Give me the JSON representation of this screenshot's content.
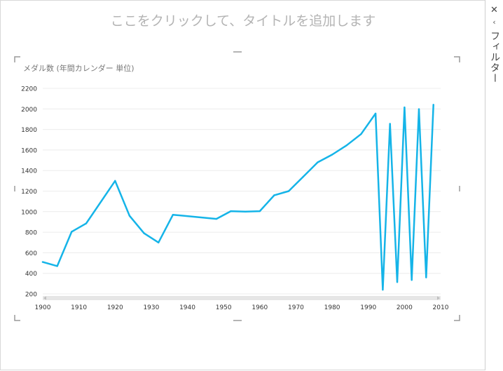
{
  "report": {
    "title_placeholder": "ここをクリックして、タイトルを追加します"
  },
  "filter_pane": {
    "close_glyph": "✕",
    "chevron_glyph": "‹",
    "label": "フィルター"
  },
  "colors": {
    "line": "#15b4e8",
    "grid": "#ececec",
    "axis_text": "#333333",
    "scrollbar": "#e6e6e6"
  },
  "chart_data": {
    "type": "line",
    "title": "メダル数 (年間カレンダー 単位)",
    "xlim": [
      1900,
      2010
    ],
    "ylim": [
      200,
      2200
    ],
    "xticks": [
      1900,
      1910,
      1920,
      1930,
      1940,
      1950,
      1960,
      1970,
      1980,
      1990,
      2000,
      2010
    ],
    "yticks": [
      200,
      400,
      600,
      800,
      1000,
      1200,
      1400,
      1600,
      1800,
      2000,
      2200
    ],
    "grid": true,
    "legend": "none",
    "series": [
      {
        "x": [
          1900,
          1904,
          1908,
          1912,
          1920,
          1924,
          1928,
          1932,
          1936,
          1948,
          1952,
          1956,
          1960,
          1964,
          1968,
          1972,
          1976,
          1980,
          1984,
          1988,
          1992,
          1994,
          1996,
          1998,
          2000,
          2002,
          2004,
          2006,
          2008
        ],
        "y": [
          510,
          470,
          805,
          885,
          1300,
          960,
          790,
          700,
          970,
          930,
          1005,
          1000,
          1005,
          1160,
          1200,
          1340,
          1480,
          1555,
          1645,
          1755,
          1955,
          240,
          1855,
          315,
          2015,
          335,
          1998,
          360,
          2040
        ]
      }
    ]
  }
}
